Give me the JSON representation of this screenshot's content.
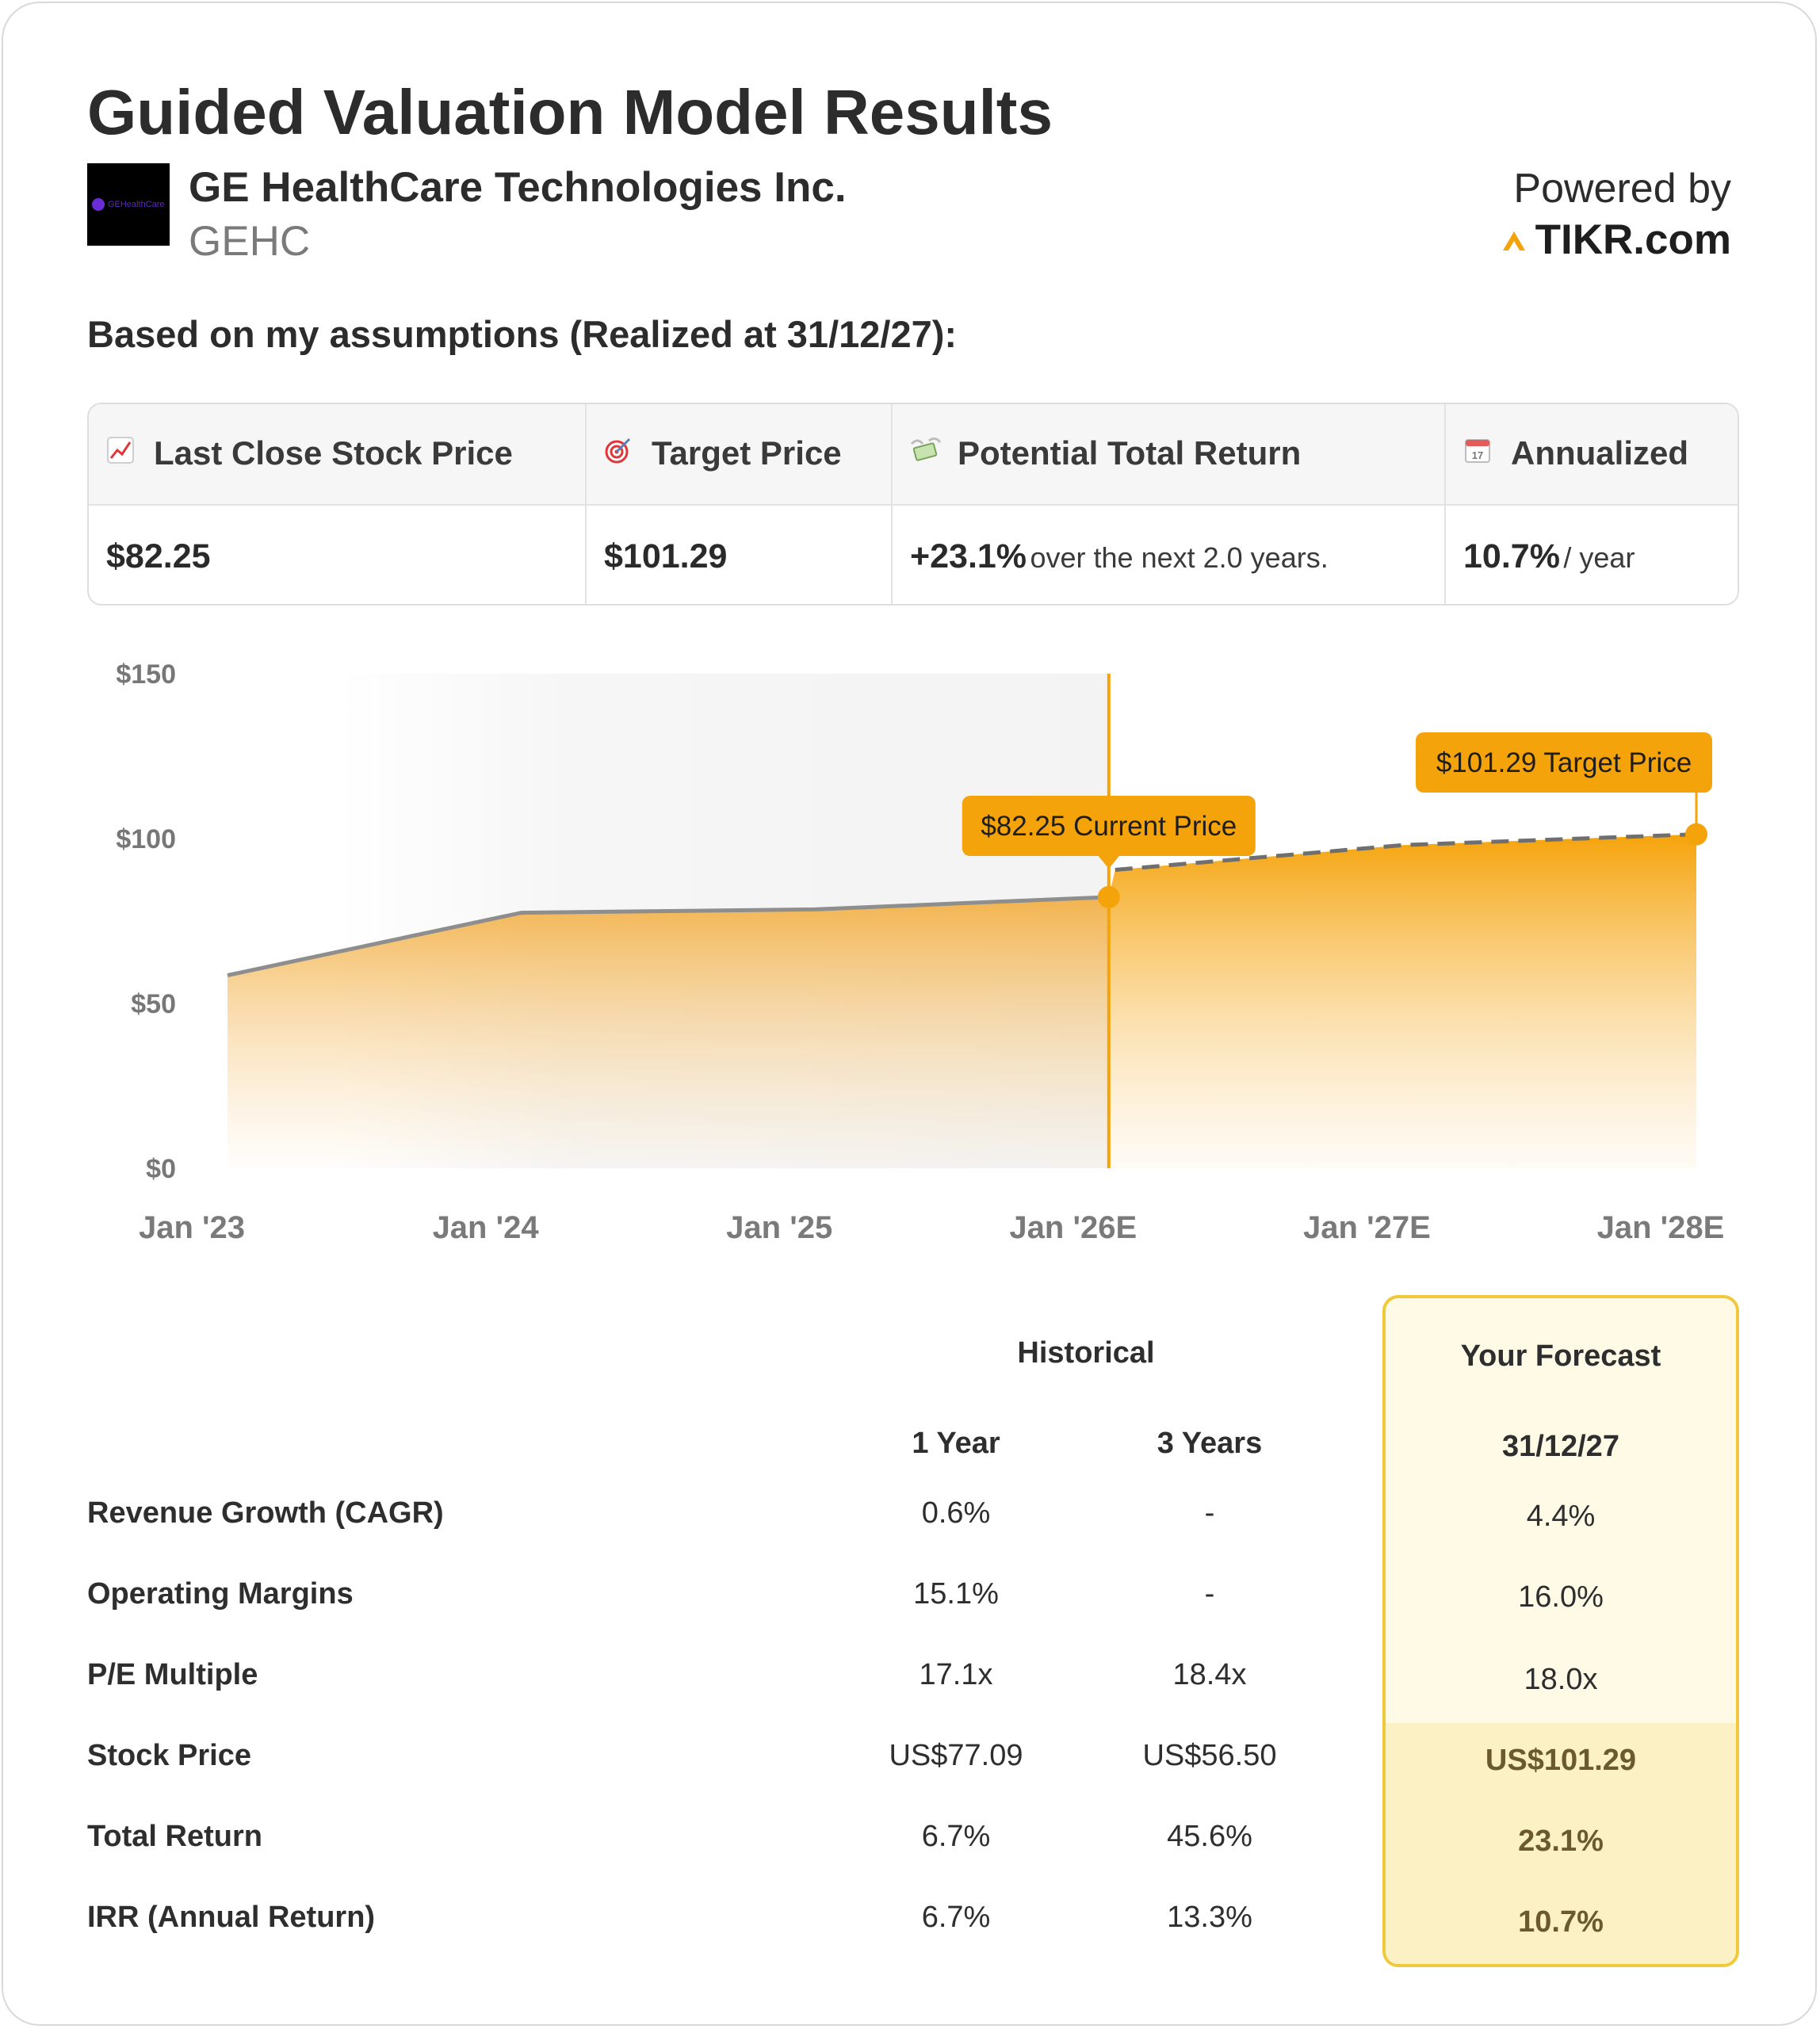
{
  "header": {
    "title": "Guided Valuation Model Results",
    "logo_text": "GEHealthCare",
    "company_name": "GE HealthCare Technologies Inc.",
    "ticker": "GEHC",
    "powered_by": "Powered by",
    "brand": "TIKR.com",
    "brand_color": "#f5a30a"
  },
  "assumption_note": "Based on my assumptions (Realized at 31/12/27):",
  "summary": {
    "last_close": {
      "icon": "chart-increasing-icon",
      "label": "Last Close Stock Price",
      "value": "$82.25"
    },
    "target": {
      "icon": "direct-hit-icon",
      "label": "Target Price",
      "value": "$101.29"
    },
    "total_return": {
      "icon": "money-with-wings-icon",
      "label": "Potential Total Return",
      "value": "+23.1%",
      "suffix": "over the next 2.0 years."
    },
    "annualized": {
      "icon": "calendar-icon",
      "label": "Annualized",
      "value": "10.7%",
      "suffix": "/ year"
    }
  },
  "chart_data": {
    "type": "area",
    "title": "",
    "xlabel": "",
    "ylabel": "",
    "x_ticks": [
      "Jan '23",
      "Jan '24",
      "Jan '25",
      "Jan '26E",
      "Jan '27E",
      "Jan '28E"
    ],
    "y_ticks": [
      "$0",
      "$50",
      "$100",
      "$150"
    ],
    "ylim": [
      0,
      150
    ],
    "series": [
      {
        "style": "solid-historical",
        "points": [
          {
            "x": "2023-01",
            "y": 58.5
          },
          {
            "x": "2024-01",
            "y": 77.5
          },
          {
            "x": "2025-01",
            "y": 78.5
          },
          {
            "x": "2026-01",
            "y": 82.25
          }
        ]
      },
      {
        "style": "dashed-forecast",
        "points": [
          {
            "x": "2026-01",
            "y": 82.25
          },
          {
            "x": "2026-01",
            "y": 90.5
          },
          {
            "x": "2027-01",
            "y": 98.0
          },
          {
            "x": "2028-01",
            "y": 101.29
          }
        ]
      }
    ],
    "annotations": [
      {
        "label": "$82.25 Current Price",
        "x": "2026-01",
        "y": 82.25
      },
      {
        "label": "$101.29 Target Price",
        "x": "2028-01",
        "y": 101.29
      }
    ],
    "accent_color": "#f5a30a",
    "line_color": "#8e8e8e"
  },
  "table": {
    "historical_label": "Historical",
    "forecast_label": "Your Forecast",
    "columns": [
      "1 Year",
      "3 Years",
      "31/12/27"
    ],
    "rows": [
      {
        "label": "Revenue Growth (CAGR)",
        "one_year": "0.6%",
        "three_years": "-",
        "forecast": "4.4%"
      },
      {
        "label": "Operating Margins",
        "one_year": "15.1%",
        "three_years": "-",
        "forecast": "16.0%"
      },
      {
        "label": "P/E Multiple",
        "one_year": "17.1x",
        "three_years": "18.4x",
        "forecast": "18.0x"
      },
      {
        "label": "Stock Price",
        "one_year": "US$77.09",
        "three_years": "US$56.50",
        "forecast": "US$101.29"
      },
      {
        "label": "Total Return",
        "one_year": "6.7%",
        "three_years": "45.6%",
        "forecast": "23.1%"
      },
      {
        "label": "IRR (Annual Return)",
        "one_year": "6.7%",
        "three_years": "13.3%",
        "forecast": "10.7%"
      }
    ]
  }
}
